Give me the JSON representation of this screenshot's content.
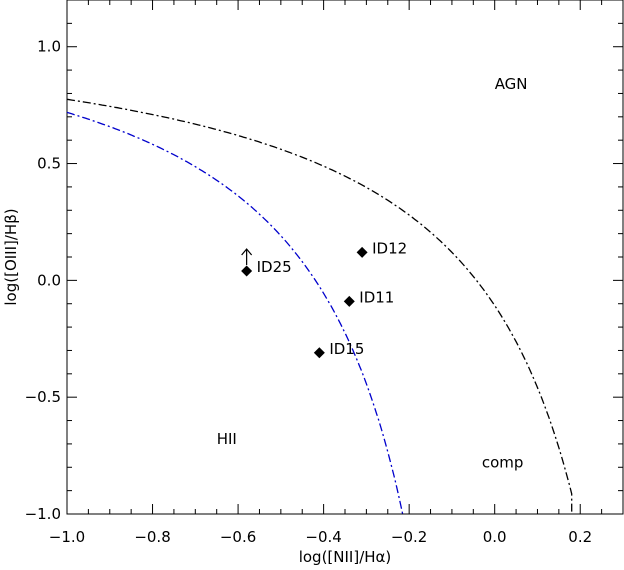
{
  "chart_data": {
    "type": "scatter",
    "xlabel": "log([NII]/Hα)",
    "ylabel": "log([OIII]/Hβ)",
    "xlim": [
      -1.0,
      0.3
    ],
    "ylim": [
      -1.0,
      1.2
    ],
    "x_ticks": [
      -1.0,
      -0.8,
      -0.6,
      -0.4,
      -0.2,
      0.0,
      0.2
    ],
    "x_tick_labels": [
      "−1.0",
      "−0.8",
      "−0.6",
      "−0.4",
      "−0.2",
      "0.0",
      "0.2"
    ],
    "y_ticks": [
      -1.0,
      -0.5,
      0.0,
      0.5,
      1.0
    ],
    "y_tick_labels": [
      "−1.0",
      "−0.5",
      "0.0",
      "0.5",
      "1.0"
    ],
    "points": [
      {
        "label": "ID12",
        "x": -0.31,
        "y": 0.12
      },
      {
        "label": "ID25",
        "x": -0.58,
        "y": 0.04,
        "lower_limit": true
      },
      {
        "label": "ID11",
        "x": -0.34,
        "y": -0.09
      },
      {
        "label": "ID15",
        "x": -0.41,
        "y": -0.31
      }
    ],
    "curves": [
      {
        "style": "dash-dot",
        "color": "#000000",
        "x": [
          -1.0,
          -0.9,
          -0.8,
          -0.7,
          -0.6,
          -0.5,
          -0.4,
          -0.3,
          -0.2,
          -0.1,
          0.0,
          0.1,
          0.15,
          0.18
        ]
      },
      {
        "style": "dash-dot",
        "color": "#0000cc",
        "x": [
          -1.0,
          -0.95,
          -0.9,
          -0.8,
          -0.7,
          -0.6,
          -0.5,
          -0.45,
          -0.4,
          -0.35,
          -0.3,
          -0.25,
          -0.2
        ]
      }
    ],
    "annotations": [
      {
        "text": "AGN",
        "x": 0.0,
        "y": 0.82
      },
      {
        "text": "HII",
        "x": -0.65,
        "y": -0.7
      },
      {
        "text": "comp",
        "x": -0.03,
        "y": -0.8
      }
    ]
  }
}
